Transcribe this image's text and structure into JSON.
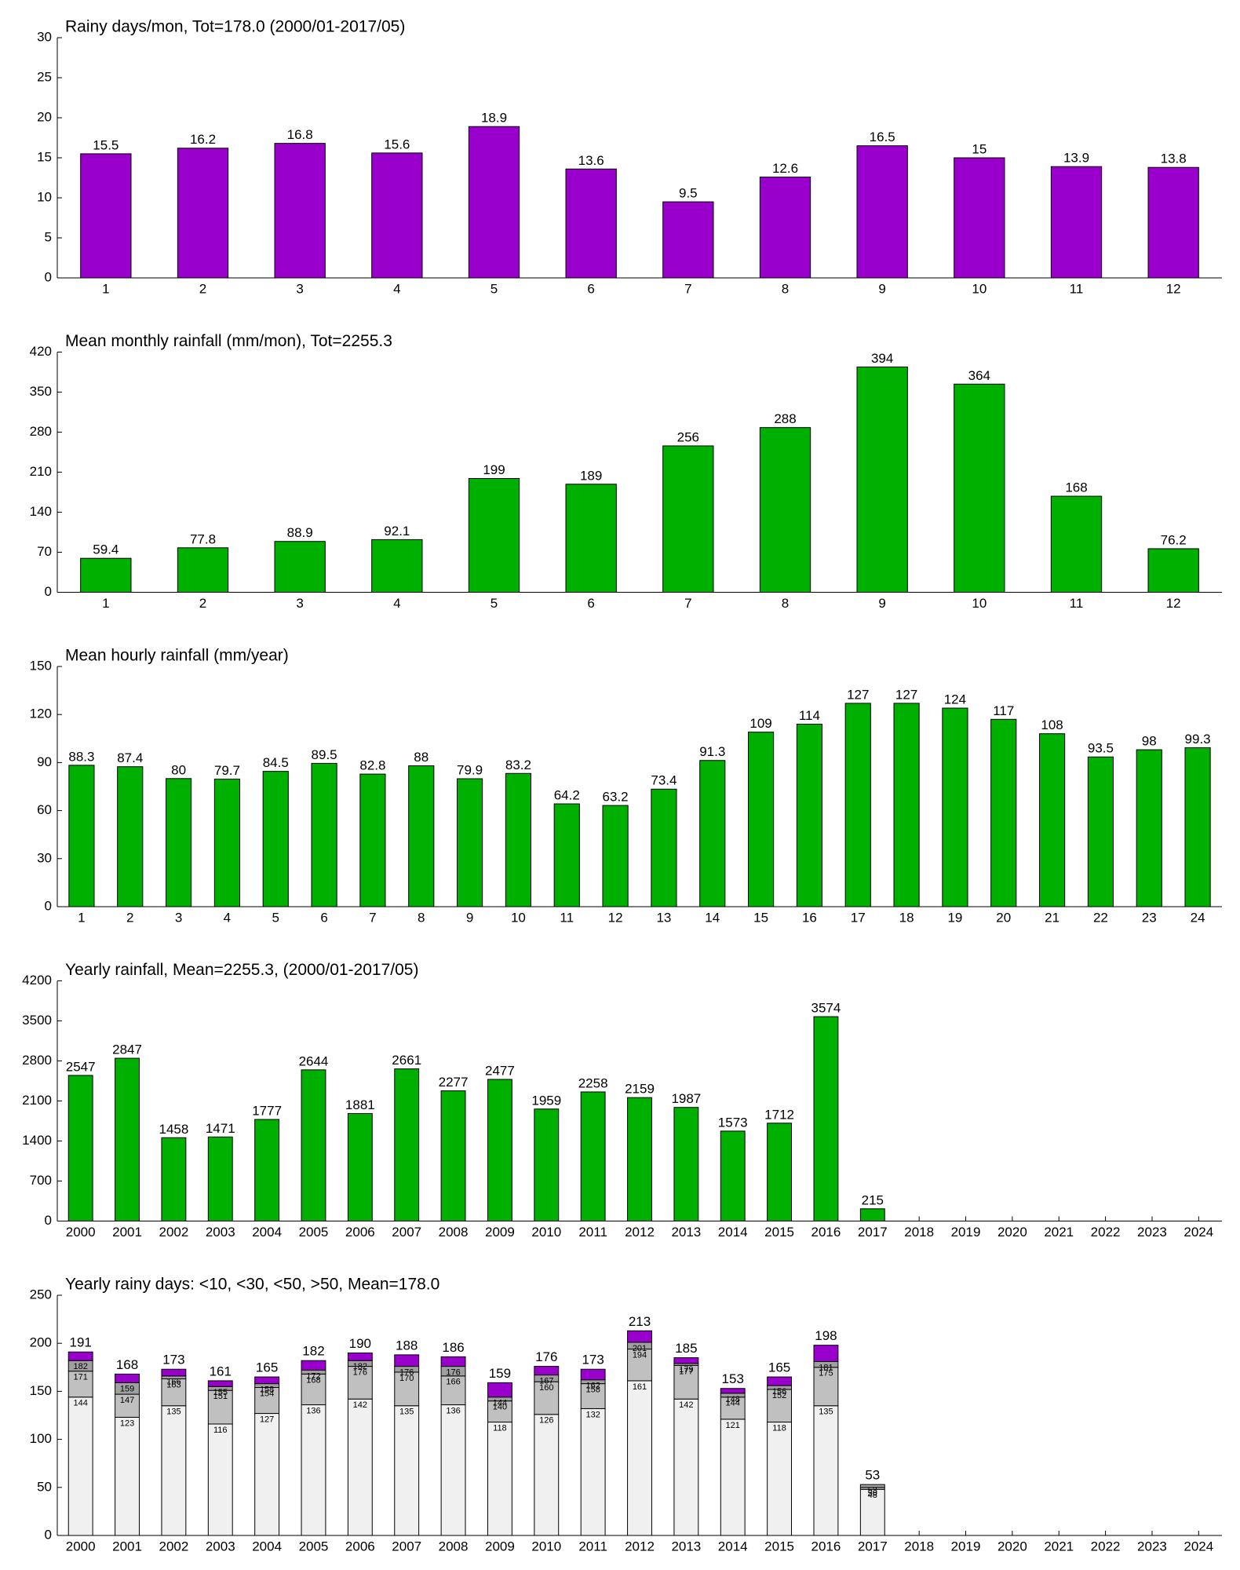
{
  "chart_data": [
    {
      "type": "bar",
      "title": "Rainy days/mon, Tot=178.0 (2000/01-2017/05)",
      "categories": [
        "1",
        "2",
        "3",
        "4",
        "5",
        "6",
        "7",
        "8",
        "9",
        "10",
        "11",
        "12"
      ],
      "values": [
        15.5,
        16.2,
        16.8,
        15.6,
        18.9,
        13.6,
        9.5,
        12.6,
        16.5,
        15,
        13.9,
        13.8
      ],
      "color": "#9900cc",
      "ylim": [
        0,
        30
      ],
      "yticks": [
        0,
        5,
        10,
        15,
        20,
        25,
        30
      ]
    },
    {
      "type": "bar",
      "title": "Mean monthly rainfall (mm/mon), Tot=2255.3",
      "categories": [
        "1",
        "2",
        "3",
        "4",
        "5",
        "6",
        "7",
        "8",
        "9",
        "10",
        "11",
        "12"
      ],
      "values": [
        59.4,
        77.8,
        88.9,
        92.1,
        199,
        189,
        256,
        288,
        394,
        364,
        168,
        76.2
      ],
      "color": "#00b000",
      "ylim": [
        0,
        420
      ],
      "yticks": [
        0,
        70,
        140,
        210,
        280,
        350,
        420
      ]
    },
    {
      "type": "bar",
      "title": "Mean hourly rainfall (mm/year)",
      "categories": [
        "1",
        "2",
        "3",
        "4",
        "5",
        "6",
        "7",
        "8",
        "9",
        "10",
        "11",
        "12",
        "13",
        "14",
        "15",
        "16",
        "17",
        "18",
        "19",
        "20",
        "21",
        "22",
        "23",
        "24"
      ],
      "values": [
        88.3,
        87.4,
        80,
        79.7,
        84.5,
        89.5,
        82.8,
        88,
        79.9,
        83.2,
        64.2,
        63.2,
        73.4,
        91.3,
        109,
        114,
        127,
        127,
        124,
        117,
        108,
        93.5,
        98,
        99.3
      ],
      "color": "#00b000",
      "ylim": [
        0,
        150
      ],
      "yticks": [
        0,
        30,
        60,
        90,
        120,
        150
      ]
    },
    {
      "type": "bar",
      "title": "Yearly rainfall, Mean=2255.3, (2000/01-2017/05)",
      "categories": [
        "2000",
        "2001",
        "2002",
        "2003",
        "2004",
        "2005",
        "2006",
        "2007",
        "2008",
        "2009",
        "2010",
        "2011",
        "2012",
        "2013",
        "2014",
        "2015",
        "2016",
        "2017",
        "2018",
        "2019",
        "2020",
        "2021",
        "2022",
        "2023",
        "2024"
      ],
      "values": [
        2547,
        2847,
        1458,
        1471,
        1777,
        2644,
        1881,
        2661,
        2277,
        2477,
        1959,
        2258,
        2159,
        1987,
        1573,
        1712,
        3574,
        215,
        null,
        null,
        null,
        null,
        null,
        null,
        null
      ],
      "color": "#00b000",
      "ylim": [
        0,
        4200
      ],
      "yticks": [
        0,
        700,
        1400,
        2100,
        2800,
        3500,
        4200
      ]
    },
    {
      "type": "stacked_bar",
      "title": "Yearly rainy days: <10, <30, <50, >50, Mean=178.0",
      "categories": [
        "2000",
        "2001",
        "2002",
        "2003",
        "2004",
        "2005",
        "2006",
        "2007",
        "2008",
        "2009",
        "2010",
        "2011",
        "2012",
        "2013",
        "2014",
        "2015",
        "2016",
        "2017",
        "2018",
        "2019",
        "2020",
        "2021",
        "2022",
        "2023",
        "2024"
      ],
      "ylim": [
        0,
        250
      ],
      "yticks": [
        0,
        50,
        100,
        150,
        200,
        250
      ],
      "series": [
        {
          "color": "#f0f0f0",
          "values": [
            144,
            123,
            135,
            116,
            127,
            136,
            142,
            135,
            136,
            118,
            126,
            132,
            161,
            142,
            121,
            118,
            135,
            48,
            null,
            null,
            null,
            null,
            null,
            null,
            null
          ],
          "cumulative_labels": [
            "144",
            "123",
            "135",
            "116",
            "127",
            "136",
            "142",
            "135",
            "136",
            "118",
            "126",
            "132",
            "161",
            "142",
            "121",
            "118",
            "135",
            "48",
            null,
            null,
            null,
            null,
            null,
            null,
            null
          ]
        },
        {
          "color": "#c0c0c0",
          "values": [
            27,
            24,
            28,
            35,
            27,
            32,
            34,
            35,
            30,
            22,
            34,
            26,
            33,
            35,
            23,
            34,
            40,
            2,
            null,
            null,
            null,
            null,
            null,
            null,
            null
          ],
          "cumulative_labels": [
            "171",
            "147",
            "163",
            "151",
            "154",
            "168",
            "176",
            "170",
            "166",
            "140",
            "160",
            "158",
            "194",
            "177",
            "144",
            "152",
            "175",
            "50",
            null,
            null,
            null,
            null,
            null,
            null,
            null
          ]
        },
        {
          "color": "#a0a0a0",
          "values": [
            11,
            12,
            3,
            4,
            4,
            4,
            6,
            6,
            10,
            4,
            7,
            4,
            7,
            2,
            4,
            4,
            6,
            3,
            null,
            null,
            null,
            null,
            null,
            null,
            null
          ],
          "cumulative_labels": [
            "182",
            "159",
            "166",
            "155",
            "158",
            "172",
            "182",
            "176",
            "176",
            "144",
            "167",
            "162",
            "201",
            "179",
            "148",
            "156",
            "181",
            "53",
            null,
            null,
            null,
            null,
            null,
            null,
            null
          ]
        },
        {
          "color": "#9900cc",
          "values": [
            9,
            9,
            7,
            6,
            7,
            10,
            8,
            12,
            10,
            15,
            9,
            11,
            12,
            6,
            5,
            9,
            17,
            0,
            null,
            null,
            null,
            null,
            null,
            null,
            null
          ],
          "cumulative_labels": [
            "191",
            "168",
            "173",
            "161",
            "165",
            "182",
            "190",
            "188",
            "186",
            "159",
            "176",
            "173",
            "213",
            "185",
            "153",
            "165",
            "198",
            "53",
            null,
            null,
            null,
            null,
            null,
            null,
            null
          ]
        }
      ]
    }
  ]
}
